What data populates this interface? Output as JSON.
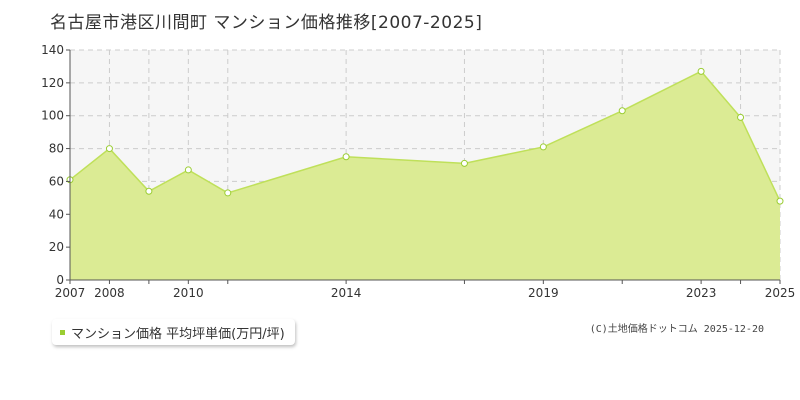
{
  "title": "名古屋市港区川間町 マンション価格推移[2007-2025]",
  "legend": {
    "label": "マンション価格 平均坪単価(万円/坪)"
  },
  "copyright": "(C)土地価格ドットコム 2025-12-20",
  "colors": {
    "fill": "#dbeb94",
    "line": "#bfe05a",
    "marker_stroke": "#9acd32",
    "legend_swatch": "#9acd32",
    "grid": "#cccccc",
    "plot_bg": "#f6f6f6"
  },
  "chart_data": {
    "type": "area",
    "x": [
      2007,
      2008,
      2009,
      2010,
      2011,
      2014,
      2017,
      2019,
      2021,
      2023,
      2024,
      2025
    ],
    "values": [
      61,
      80,
      54,
      67,
      53,
      75,
      71,
      81,
      103,
      127,
      99,
      48
    ],
    "x_tick_labels": [
      "2007",
      "2008",
      "2010",
      "2014",
      "2019",
      "2023",
      "2025"
    ],
    "y_ticks": [
      0,
      20,
      40,
      60,
      80,
      100,
      120,
      140
    ],
    "ylim": [
      0,
      140
    ],
    "grid": true,
    "legend_position": "bottom-left"
  }
}
